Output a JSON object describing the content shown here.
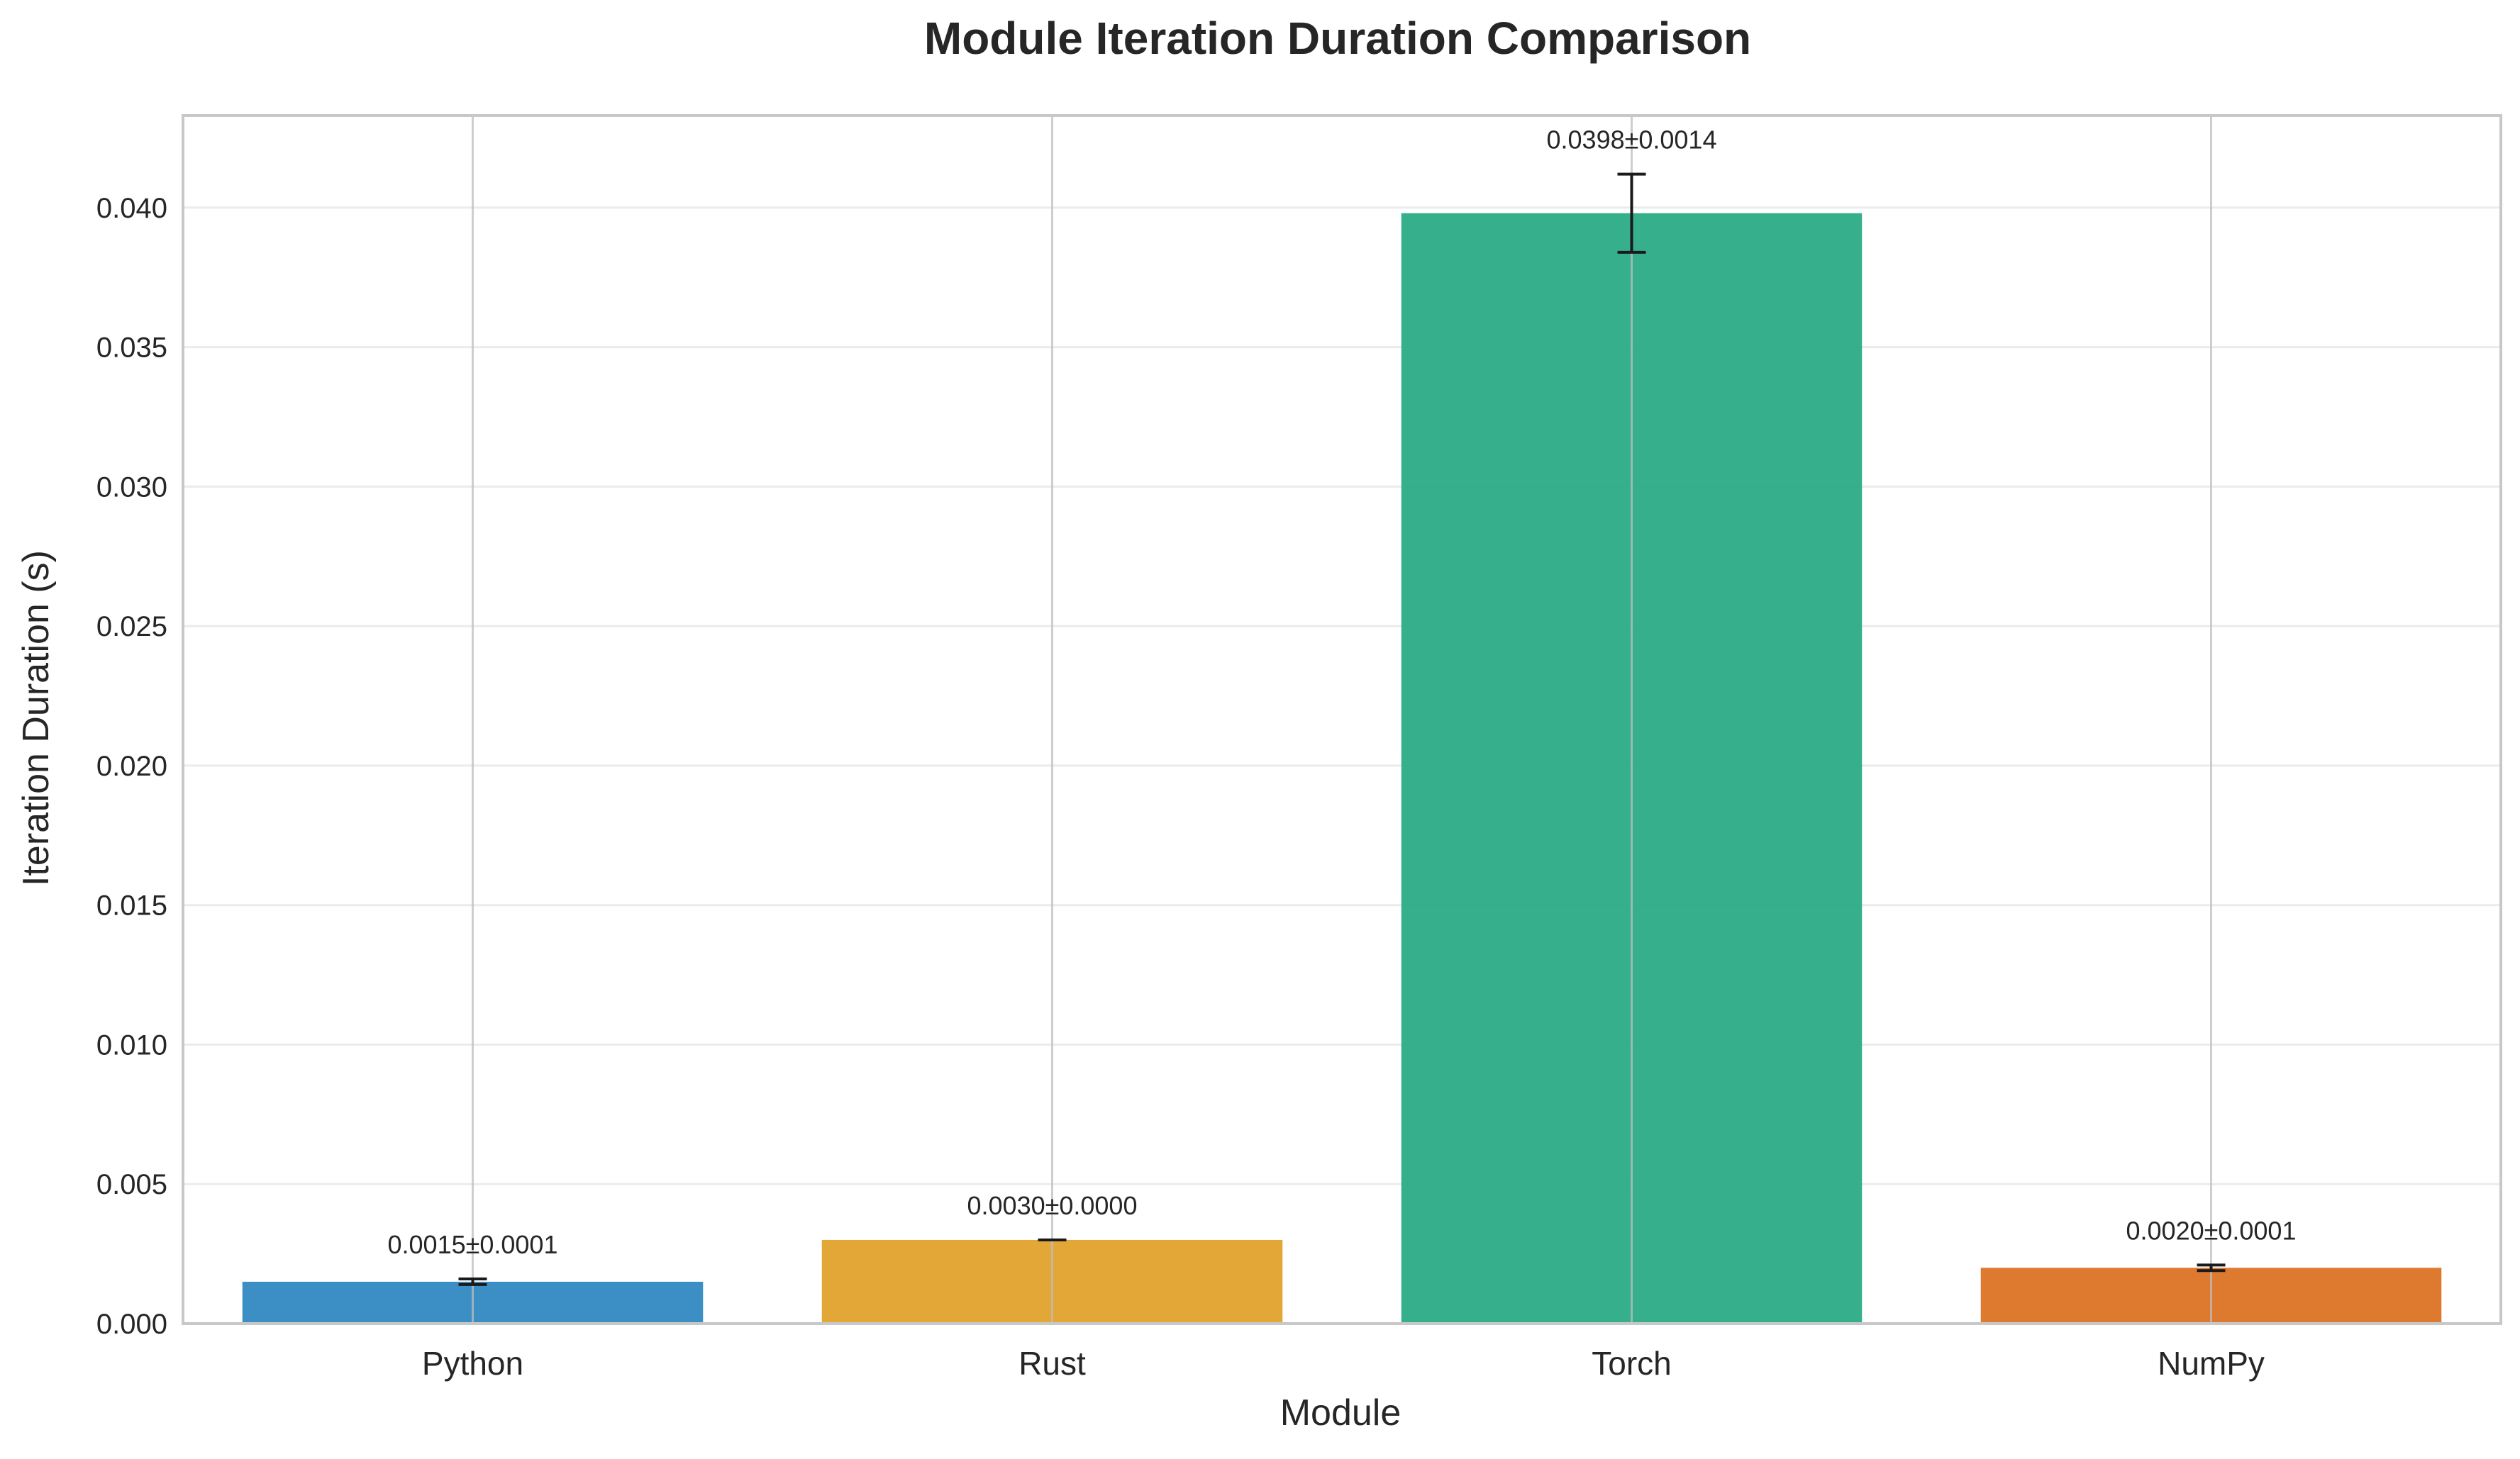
{
  "chart_data": {
    "type": "bar",
    "title": "Module Iteration Duration Comparison",
    "xlabel": "Module",
    "ylabel": "Iteration Duration (s)",
    "categories": [
      "Python",
      "Rust",
      "Torch",
      "NumPy"
    ],
    "values": [
      0.0015,
      0.003,
      0.0398,
      0.002
    ],
    "errors": [
      0.0001,
      0.0,
      0.0014,
      0.0001
    ],
    "data_labels": [
      "0.0015±0.0001",
      "0.0030±0.0000",
      "0.0398±0.0014",
      "0.0020±0.0001"
    ],
    "colors": [
      "#2b86c0",
      "#e19f26",
      "#25a882",
      "#db6f1e"
    ],
    "ylim": [
      0,
      0.0433
    ],
    "yticks": [
      0.0,
      0.005,
      0.01,
      0.015,
      0.02,
      0.025,
      0.03,
      0.035,
      0.04
    ],
    "ytick_labels": [
      "0.000",
      "0.005",
      "0.010",
      "0.015",
      "0.020",
      "0.025",
      "0.030",
      "0.035",
      "0.040"
    ],
    "grid": true,
    "legend": "none"
  }
}
